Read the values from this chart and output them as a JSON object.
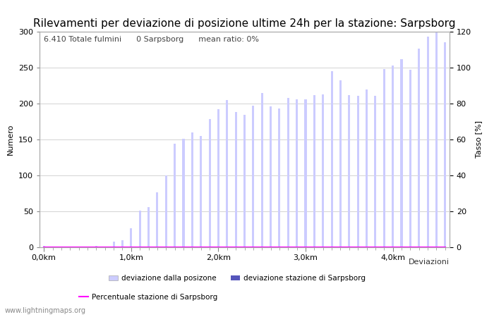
{
  "title": "Rilevamenti per deviazione di posizione ultime 24h per la stazione: Sarpsborg",
  "xlabel": "Deviazioni",
  "ylabel_left": "Numero",
  "ylabel_right": "Tasso [%]",
  "annotation": "6.410 Totale fulmini      0 Sarpsborg      mean ratio: 0%",
  "watermark": "www.lightningmaps.org",
  "bar_color_light": "#ccccff",
  "bar_color_dark": "#5555bb",
  "line_color": "#ff00ff",
  "ylim_left": [
    0,
    300
  ],
  "ylim_right": [
    0,
    120
  ],
  "yticks_left": [
    0,
    50,
    100,
    150,
    200,
    250,
    300
  ],
  "yticks_right": [
    0,
    20,
    40,
    60,
    80,
    100,
    120
  ],
  "xtick_labels": [
    "0,0km",
    "1,0km",
    "2,0km",
    "3,0km",
    "4,0km"
  ],
  "xtick_positions": [
    0,
    10,
    20,
    30,
    40
  ],
  "n_bars": 47,
  "bar_values": [
    2,
    0,
    0,
    0,
    0,
    0,
    2,
    1,
    8,
    10,
    26,
    51,
    56,
    76,
    100,
    144,
    151,
    160,
    155,
    178,
    192,
    205,
    188,
    184,
    197,
    215,
    196,
    193,
    208,
    206,
    206,
    212,
    213,
    245,
    232,
    212,
    211,
    220,
    211,
    248,
    253,
    262,
    247,
    276,
    293,
    300,
    285
  ],
  "bar_values_dark": [
    0,
    0,
    0,
    0,
    0,
    0,
    0,
    0,
    0,
    0,
    0,
    0,
    0,
    0,
    0,
    0,
    0,
    0,
    0,
    0,
    0,
    0,
    0,
    0,
    0,
    0,
    0,
    0,
    0,
    0,
    0,
    0,
    0,
    0,
    0,
    0,
    0,
    0,
    0,
    0,
    0,
    0,
    0,
    0,
    0,
    0,
    0
  ],
  "legend_label_light": "deviazione dalla posizone",
  "legend_label_dark": "deviazione stazione di Sarpsborg",
  "legend_label_line": "Percentuale stazione di Sarpsborg",
  "background_color": "#ffffff",
  "grid_color": "#cccccc",
  "title_fontsize": 11,
  "label_fontsize": 8,
  "tick_fontsize": 8,
  "annotation_fontsize": 8,
  "bar_width": 0.25
}
